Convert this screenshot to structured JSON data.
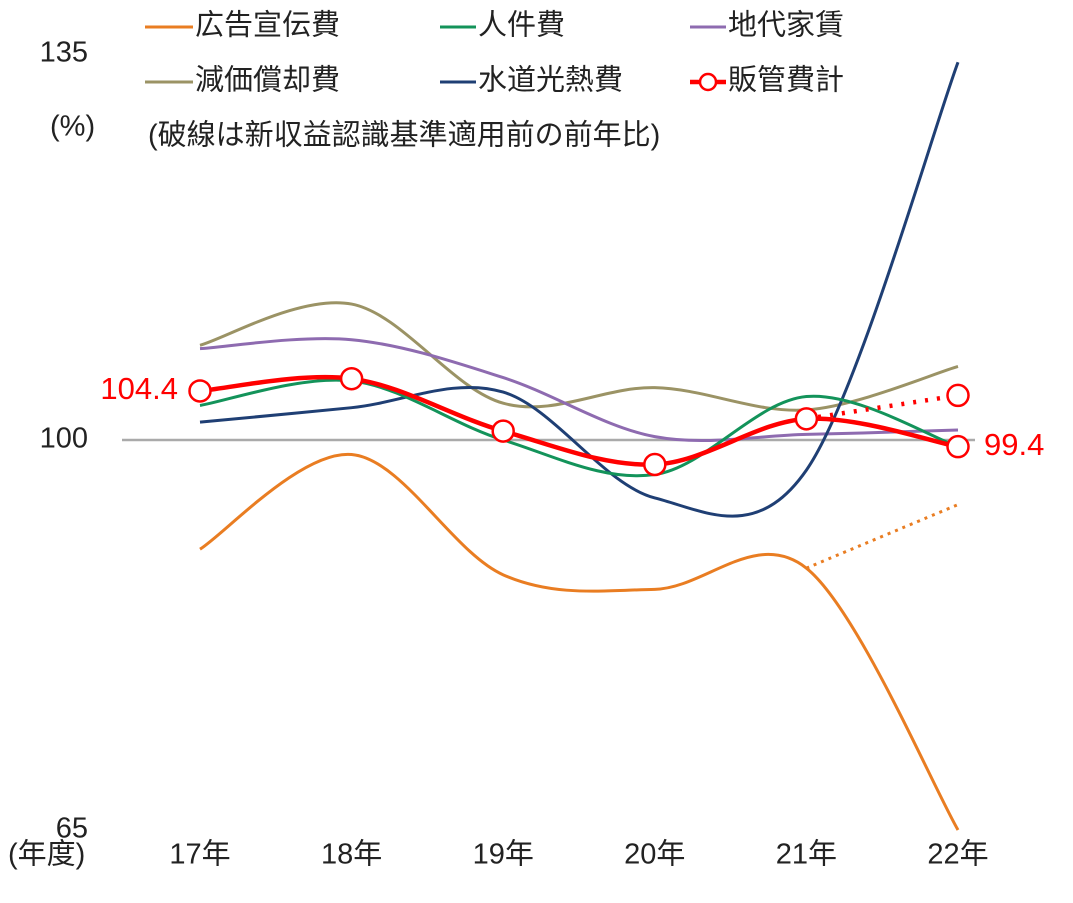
{
  "chart_data": {
    "type": "line",
    "note": "(破線は新収益認識基準適用前の前年比)",
    "y_unit": "(%)",
    "x_unit": "(年度)",
    "categories": [
      "17年",
      "18年",
      "19年",
      "20年",
      "21年",
      "22年"
    ],
    "ylim": [
      65,
      135
    ],
    "yticks": [
      65,
      100,
      135
    ],
    "reference_line": 100,
    "series": [
      {
        "name": "広告宣伝費",
        "color": "#e97d22",
        "values": [
          90.2,
          98.7,
          87.9,
          86.6,
          88.5,
          65.0
        ],
        "dashed_values": [
          null,
          null,
          null,
          null,
          88.5,
          94.2
        ]
      },
      {
        "name": "人件費",
        "color": "#13935a",
        "values": [
          103.1,
          105.3,
          100.0,
          96.9,
          103.9,
          99.4
        ]
      },
      {
        "name": "地代家賃",
        "color": "#8e6bb0",
        "values": [
          108.2,
          109.0,
          105.6,
          100.3,
          100.5,
          100.9
        ]
      },
      {
        "name": "減価償却費",
        "color": "#9b9365",
        "values": [
          108.5,
          112.2,
          103.3,
          104.7,
          102.7,
          106.6
        ]
      },
      {
        "name": "水道光熱費",
        "color": "#1f3f74",
        "values": [
          101.6,
          102.9,
          104.3,
          94.8,
          97.3,
          133.9
        ]
      },
      {
        "name": "販管費計",
        "color": "#ff0000",
        "markers": true,
        "values": [
          104.4,
          105.5,
          100.8,
          97.8,
          101.9,
          99.4
        ],
        "value_labels": [
          "104.4",
          null,
          null,
          null,
          null,
          "99.4"
        ],
        "dashed_values": [
          null,
          null,
          null,
          null,
          101.9,
          104.0
        ]
      }
    ]
  }
}
